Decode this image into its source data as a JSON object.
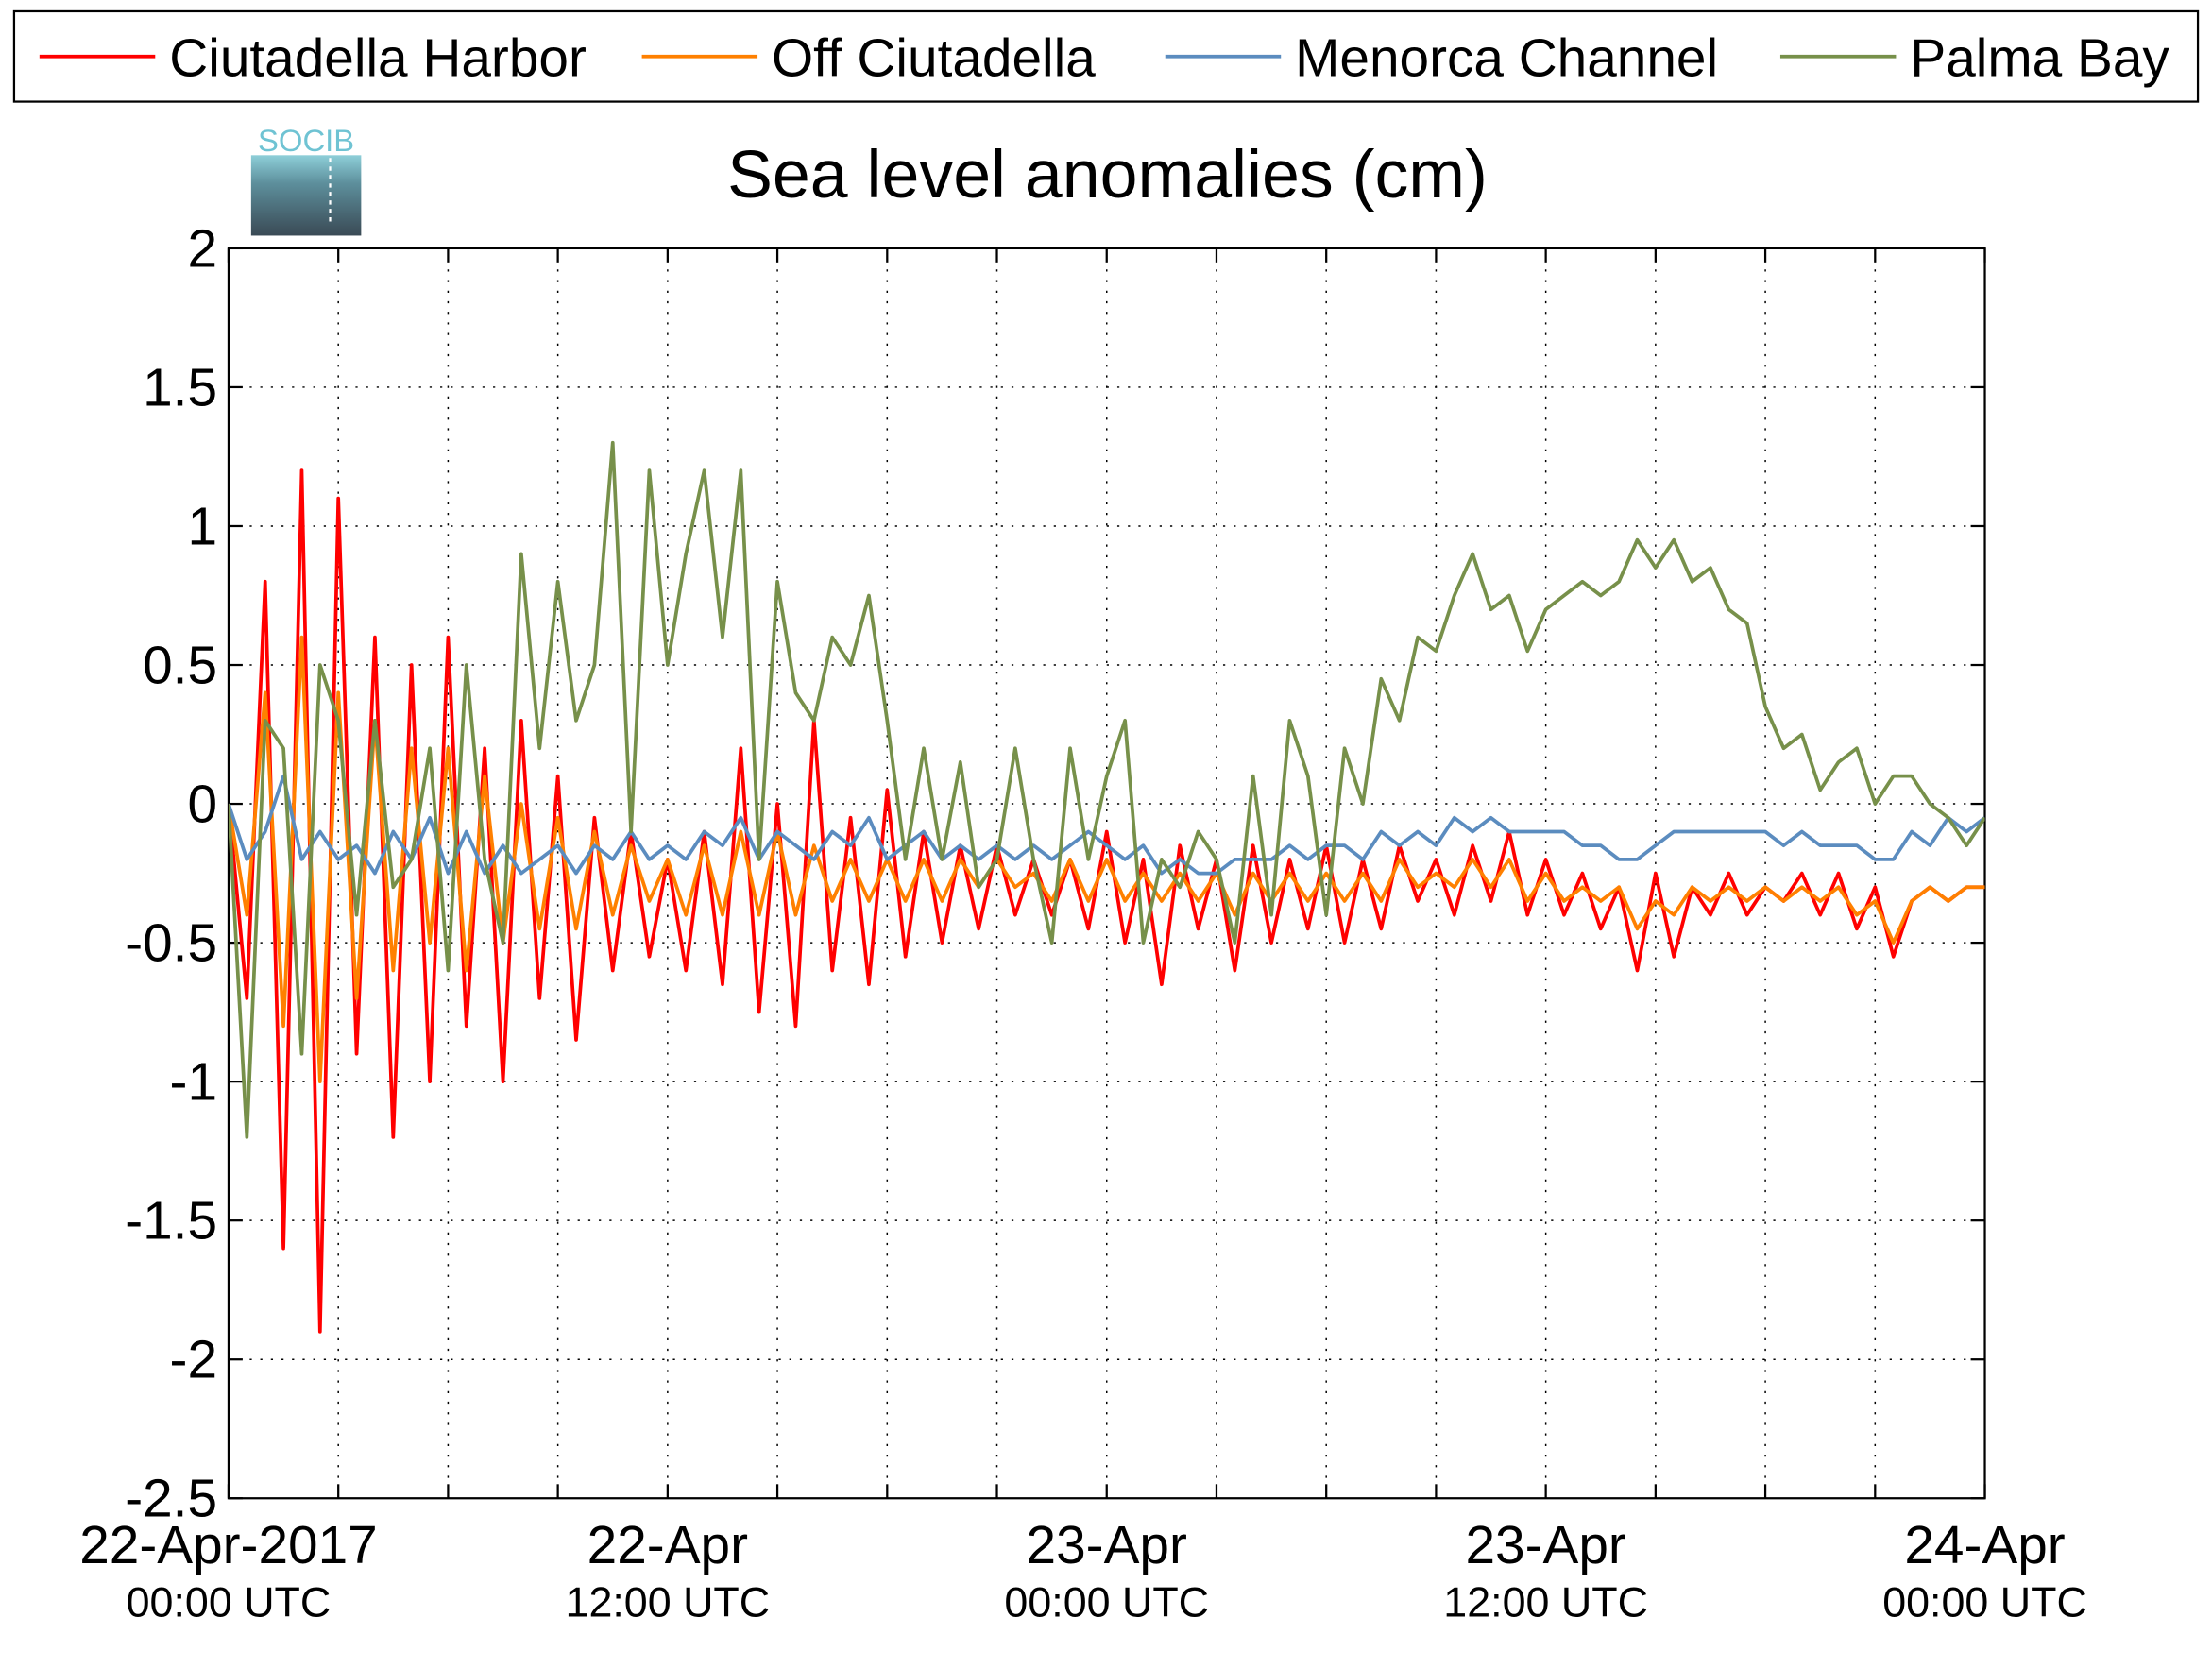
{
  "chart_data": {
    "type": "line",
    "title": "Sea level anomalies (cm)",
    "logo": "SOCIB",
    "x": [
      "2017-04-22T00:00",
      "2017-04-22T00:30",
      "2017-04-22T01:00",
      "2017-04-22T01:30",
      "2017-04-22T02:00",
      "2017-04-22T02:30",
      "2017-04-22T03:00",
      "2017-04-22T03:30",
      "2017-04-22T04:00",
      "2017-04-22T04:30",
      "2017-04-22T05:00",
      "2017-04-22T05:30",
      "2017-04-22T06:00",
      "2017-04-22T06:30",
      "2017-04-22T07:00",
      "2017-04-22T07:30",
      "2017-04-22T08:00",
      "2017-04-22T08:30",
      "2017-04-22T09:00",
      "2017-04-22T09:30",
      "2017-04-22T10:00",
      "2017-04-22T10:30",
      "2017-04-22T11:00",
      "2017-04-22T11:30",
      "2017-04-22T12:00",
      "2017-04-22T12:30",
      "2017-04-22T13:00",
      "2017-04-22T13:30",
      "2017-04-22T14:00",
      "2017-04-22T14:30",
      "2017-04-22T15:00",
      "2017-04-22T15:30",
      "2017-04-22T16:00",
      "2017-04-22T16:30",
      "2017-04-22T17:00",
      "2017-04-22T17:30",
      "2017-04-22T18:00",
      "2017-04-22T18:30",
      "2017-04-22T19:00",
      "2017-04-22T19:30",
      "2017-04-22T20:00",
      "2017-04-22T20:30",
      "2017-04-22T21:00",
      "2017-04-22T21:30",
      "2017-04-22T22:00",
      "2017-04-22T22:30",
      "2017-04-22T23:00",
      "2017-04-22T23:30",
      "2017-04-23T00:00",
      "2017-04-23T00:30",
      "2017-04-23T01:00",
      "2017-04-23T01:30",
      "2017-04-23T02:00",
      "2017-04-23T02:30",
      "2017-04-23T03:00",
      "2017-04-23T03:30",
      "2017-04-23T04:00",
      "2017-04-23T04:30",
      "2017-04-23T05:00",
      "2017-04-23T05:30",
      "2017-04-23T06:00",
      "2017-04-23T06:30",
      "2017-04-23T07:00",
      "2017-04-23T07:30",
      "2017-04-23T08:00",
      "2017-04-23T08:30",
      "2017-04-23T09:00",
      "2017-04-23T09:30",
      "2017-04-23T10:00",
      "2017-04-23T10:30",
      "2017-04-23T11:00",
      "2017-04-23T11:30",
      "2017-04-23T12:00",
      "2017-04-23T12:30",
      "2017-04-23T13:00",
      "2017-04-23T13:30",
      "2017-04-23T14:00",
      "2017-04-23T14:30",
      "2017-04-23T15:00",
      "2017-04-23T15:30",
      "2017-04-23T16:00",
      "2017-04-23T16:30",
      "2017-04-23T17:00",
      "2017-04-23T17:30",
      "2017-04-23T18:00",
      "2017-04-23T18:30",
      "2017-04-23T19:00",
      "2017-04-23T19:30",
      "2017-04-23T20:00",
      "2017-04-23T20:30",
      "2017-04-23T21:00",
      "2017-04-23T21:30",
      "2017-04-23T22:00",
      "2017-04-23T22:30",
      "2017-04-23T23:00",
      "2017-04-23T23:30",
      "2017-04-24T00:00"
    ],
    "series": [
      {
        "name": "Ciutadella Harbor",
        "color": "#ff0000",
        "values": [
          0,
          -0.7,
          0.8,
          -1.6,
          1.2,
          -1.9,
          1.1,
          -0.9,
          0.6,
          -1.2,
          0.5,
          -1.0,
          0.6,
          -0.8,
          0.2,
          -1.0,
          0.3,
          -0.7,
          0.1,
          -0.85,
          -0.05,
          -0.6,
          -0.1,
          -0.55,
          -0.2,
          -0.6,
          -0.1,
          -0.65,
          0.2,
          -0.75,
          0.0,
          -0.8,
          0.3,
          -0.6,
          -0.05,
          -0.65,
          0.05,
          -0.55,
          -0.1,
          -0.5,
          -0.15,
          -0.45,
          -0.15,
          -0.4,
          -0.2,
          -0.4,
          -0.2,
          -0.45,
          -0.1,
          -0.5,
          -0.2,
          -0.65,
          -0.15,
          -0.45,
          -0.2,
          -0.6,
          -0.15,
          -0.5,
          -0.2,
          -0.45,
          -0.15,
          -0.5,
          -0.2,
          -0.45,
          -0.15,
          -0.35,
          -0.2,
          -0.4,
          -0.15,
          -0.35,
          -0.1,
          -0.4,
          -0.2,
          -0.4,
          -0.25,
          -0.45,
          -0.3,
          -0.6,
          -0.25,
          -0.55,
          -0.3,
          -0.4,
          -0.25,
          -0.4,
          -0.3,
          -0.35,
          -0.25,
          -0.4,
          -0.25,
          -0.45,
          -0.3,
          -0.55,
          -0.35,
          -0.3,
          -0.35,
          -0.3,
          -0.3
        ]
      },
      {
        "name": "Off Ciutadella",
        "color": "#ff8000",
        "values": [
          0,
          -0.4,
          0.4,
          -0.8,
          0.6,
          -1.0,
          0.4,
          -0.7,
          0.3,
          -0.6,
          0.2,
          -0.5,
          0.2,
          -0.6,
          0.1,
          -0.5,
          0,
          -0.45,
          -0.05,
          -0.45,
          -0.1,
          -0.4,
          -0.15,
          -0.35,
          -0.2,
          -0.4,
          -0.15,
          -0.4,
          -0.1,
          -0.4,
          -0.1,
          -0.4,
          -0.15,
          -0.35,
          -0.2,
          -0.35,
          -0.2,
          -0.35,
          -0.2,
          -0.35,
          -0.2,
          -0.3,
          -0.2,
          -0.3,
          -0.25,
          -0.35,
          -0.2,
          -0.35,
          -0.2,
          -0.35,
          -0.25,
          -0.35,
          -0.25,
          -0.35,
          -0.25,
          -0.4,
          -0.25,
          -0.35,
          -0.25,
          -0.35,
          -0.25,
          -0.35,
          -0.25,
          -0.35,
          -0.2,
          -0.3,
          -0.25,
          -0.3,
          -0.2,
          -0.3,
          -0.2,
          -0.35,
          -0.25,
          -0.35,
          -0.3,
          -0.35,
          -0.3,
          -0.45,
          -0.35,
          -0.4,
          -0.3,
          -0.35,
          -0.3,
          -0.35,
          -0.3,
          -0.35,
          -0.3,
          -0.35,
          -0.3,
          -0.4,
          -0.35,
          -0.5,
          -0.35,
          -0.3,
          -0.35,
          -0.3,
          -0.3
        ]
      },
      {
        "name": "Menorca Channel",
        "color": "#5b8cbf",
        "values": [
          0,
          -0.2,
          -0.1,
          0.1,
          -0.2,
          -0.1,
          -0.2,
          -0.15,
          -0.25,
          -0.1,
          -0.2,
          -0.05,
          -0.25,
          -0.1,
          -0.25,
          -0.15,
          -0.25,
          -0.2,
          -0.15,
          -0.25,
          -0.15,
          -0.2,
          -0.1,
          -0.2,
          -0.15,
          -0.2,
          -0.1,
          -0.15,
          -0.05,
          -0.2,
          -0.1,
          -0.15,
          -0.2,
          -0.1,
          -0.15,
          -0.05,
          -0.2,
          -0.15,
          -0.1,
          -0.2,
          -0.15,
          -0.2,
          -0.15,
          -0.2,
          -0.15,
          -0.2,
          -0.15,
          -0.1,
          -0.15,
          -0.2,
          -0.15,
          -0.25,
          -0.2,
          -0.25,
          -0.25,
          -0.2,
          -0.2,
          -0.2,
          -0.15,
          -0.2,
          -0.15,
          -0.15,
          -0.2,
          -0.1,
          -0.15,
          -0.1,
          -0.15,
          -0.05,
          -0.1,
          -0.05,
          -0.1,
          -0.1,
          -0.1,
          -0.1,
          -0.15,
          -0.15,
          -0.2,
          -0.2,
          -0.15,
          -0.1,
          -0.1,
          -0.1,
          -0.1,
          -0.1,
          -0.1,
          -0.15,
          -0.1,
          -0.15,
          -0.15,
          -0.15,
          -0.2,
          -0.2,
          -0.1,
          -0.15,
          -0.05,
          -0.1,
          -0.05
        ]
      },
      {
        "name": "Palma Bay",
        "color": "#77904a",
        "values": [
          0,
          -1.2,
          0.3,
          0.2,
          -0.9,
          0.5,
          0.3,
          -0.4,
          0.3,
          -0.3,
          -0.2,
          0.2,
          -0.6,
          0.5,
          -0.2,
          -0.5,
          0.9,
          0.2,
          0.8,
          0.3,
          0.5,
          1.3,
          -0.1,
          1.2,
          0.5,
          0.9,
          1.2,
          0.6,
          1.2,
          -0.2,
          0.8,
          0.4,
          0.3,
          0.6,
          0.5,
          0.75,
          0.3,
          -0.2,
          0.2,
          -0.2,
          0.15,
          -0.3,
          -0.2,
          0.2,
          -0.2,
          -0.5,
          0.2,
          -0.2,
          0.1,
          0.3,
          -0.5,
          -0.2,
          -0.3,
          -0.1,
          -0.2,
          -0.5,
          0.1,
          -0.4,
          0.3,
          0.1,
          -0.4,
          0.2,
          0,
          0.45,
          0.3,
          0.6,
          0.55,
          0.75,
          0.9,
          0.7,
          0.75,
          0.55,
          0.7,
          0.75,
          0.8,
          0.75,
          0.8,
          0.95,
          0.85,
          0.95,
          0.8,
          0.85,
          0.7,
          0.65,
          0.35,
          0.2,
          0.25,
          0.05,
          0.15,
          0.2,
          0,
          0.1,
          0.1,
          0,
          -0.05,
          -0.15,
          -0.05
        ]
      }
    ],
    "xlim": [
      "2017-04-22T00:00",
      "2017-04-24T00:00"
    ],
    "xticks": [
      {
        "value": "2017-04-22T00:00",
        "label": "22-Apr-2017",
        "sublabel": "00:00 UTC"
      },
      {
        "value": "2017-04-22T03:00"
      },
      {
        "value": "2017-04-22T06:00"
      },
      {
        "value": "2017-04-22T09:00"
      },
      {
        "value": "2017-04-22T12:00",
        "label": "22-Apr",
        "sublabel": "12:00 UTC"
      },
      {
        "value": "2017-04-22T15:00"
      },
      {
        "value": "2017-04-22T18:00"
      },
      {
        "value": "2017-04-22T21:00"
      },
      {
        "value": "2017-04-23T00:00",
        "label": "23-Apr",
        "sublabel": "00:00 UTC"
      },
      {
        "value": "2017-04-23T03:00"
      },
      {
        "value": "2017-04-23T06:00"
      },
      {
        "value": "2017-04-23T09:00"
      },
      {
        "value": "2017-04-23T12:00",
        "label": "23-Apr",
        "sublabel": "12:00 UTC"
      },
      {
        "value": "2017-04-23T15:00"
      },
      {
        "value": "2017-04-23T18:00"
      },
      {
        "value": "2017-04-23T21:00"
      },
      {
        "value": "2017-04-24T00:00",
        "label": "24-Apr",
        "sublabel": "00:00 UTC"
      }
    ],
    "ylim": [
      -2.5,
      2
    ],
    "yticks": [
      -2.5,
      -2,
      -1.5,
      -1,
      -0.5,
      0,
      0.5,
      1,
      1.5,
      2
    ],
    "grid": true,
    "legend": "top"
  }
}
